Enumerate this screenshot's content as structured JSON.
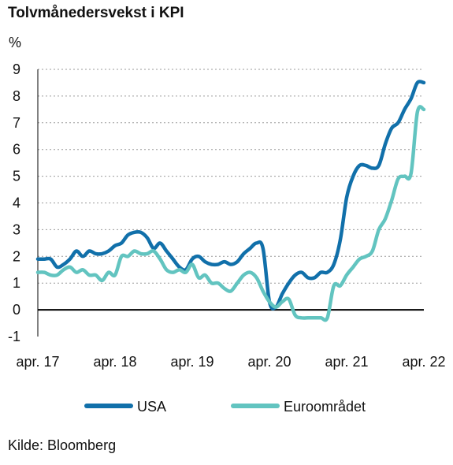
{
  "chart_data": {
    "type": "line",
    "title": "Tolvmånedersvekst i KPI",
    "ylabel": "%",
    "ylim": [
      -1,
      9
    ],
    "yticks": [
      -1,
      0,
      1,
      2,
      3,
      4,
      5,
      6,
      7,
      8,
      9
    ],
    "xlim": [
      0,
      60
    ],
    "xticks": [
      {
        "x": 0,
        "label": "apr. 17"
      },
      {
        "x": 12,
        "label": "apr. 18"
      },
      {
        "x": 24,
        "label": "apr. 19"
      },
      {
        "x": 36,
        "label": "apr. 20"
      },
      {
        "x": 48,
        "label": "apr. 21"
      },
      {
        "x": 60,
        "label": "apr. 22"
      }
    ],
    "grid": "horizontal",
    "legend": "bottom",
    "series": [
      {
        "name": "USA",
        "color": "#1170aa",
        "x": [
          0,
          1,
          2,
          3,
          4,
          5,
          6,
          7,
          8,
          9,
          10,
          11,
          12,
          13,
          14,
          15,
          16,
          17,
          18,
          19,
          20,
          21,
          22,
          23,
          24,
          25,
          26,
          27,
          28,
          29,
          30,
          31,
          32,
          33,
          34,
          35,
          36,
          37,
          38,
          39,
          40,
          41,
          42,
          43,
          44,
          45,
          46,
          47,
          48,
          49,
          50,
          51,
          52,
          53,
          54,
          55,
          56,
          57,
          58,
          59,
          60
        ],
        "values": [
          1.9,
          1.9,
          1.9,
          1.6,
          1.7,
          1.9,
          2.2,
          2.0,
          2.2,
          2.1,
          2.1,
          2.2,
          2.4,
          2.5,
          2.8,
          2.9,
          2.9,
          2.7,
          2.3,
          2.5,
          2.2,
          1.9,
          1.6,
          1.5,
          1.9,
          2.0,
          1.8,
          1.7,
          1.7,
          1.8,
          1.7,
          1.8,
          2.1,
          2.3,
          2.5,
          2.3,
          0.3,
          0.1,
          0.6,
          1.0,
          1.3,
          1.4,
          1.2,
          1.2,
          1.4,
          1.4,
          1.7,
          2.6,
          4.2,
          5.0,
          5.4,
          5.4,
          5.3,
          5.4,
          6.2,
          6.8,
          7.0,
          7.5,
          7.9,
          8.5,
          8.5
        ]
      },
      {
        "name": "Euroområdet",
        "color": "#62c4c0",
        "x": [
          0,
          1,
          2,
          3,
          4,
          5,
          6,
          7,
          8,
          9,
          10,
          11,
          12,
          13,
          14,
          15,
          16,
          17,
          18,
          19,
          20,
          21,
          22,
          23,
          24,
          25,
          26,
          27,
          28,
          29,
          30,
          31,
          32,
          33,
          34,
          35,
          36,
          37,
          38,
          39,
          40,
          41,
          42,
          43,
          44,
          45,
          46,
          47,
          48,
          49,
          50,
          51,
          52,
          53,
          54,
          55,
          56,
          57,
          58,
          59,
          60
        ],
        "values": [
          1.4,
          1.4,
          1.3,
          1.3,
          1.5,
          1.6,
          1.4,
          1.5,
          1.3,
          1.3,
          1.1,
          1.4,
          1.3,
          2.0,
          2.0,
          2.2,
          2.1,
          2.1,
          2.2,
          1.9,
          1.5,
          1.4,
          1.5,
          1.4,
          1.7,
          1.2,
          1.3,
          1.0,
          1.0,
          0.8,
          0.7,
          1.0,
          1.3,
          1.4,
          1.2,
          0.7,
          0.3,
          0.1,
          0.3,
          0.4,
          -0.2,
          -0.3,
          -0.3,
          -0.3,
          -0.3,
          -0.3,
          0.9,
          0.9,
          1.3,
          1.6,
          1.9,
          2.0,
          2.2,
          3.0,
          3.4,
          4.1,
          4.9,
          5.0,
          5.1,
          7.4,
          7.5
        ]
      }
    ]
  },
  "source": "Kilde: Bloomberg"
}
